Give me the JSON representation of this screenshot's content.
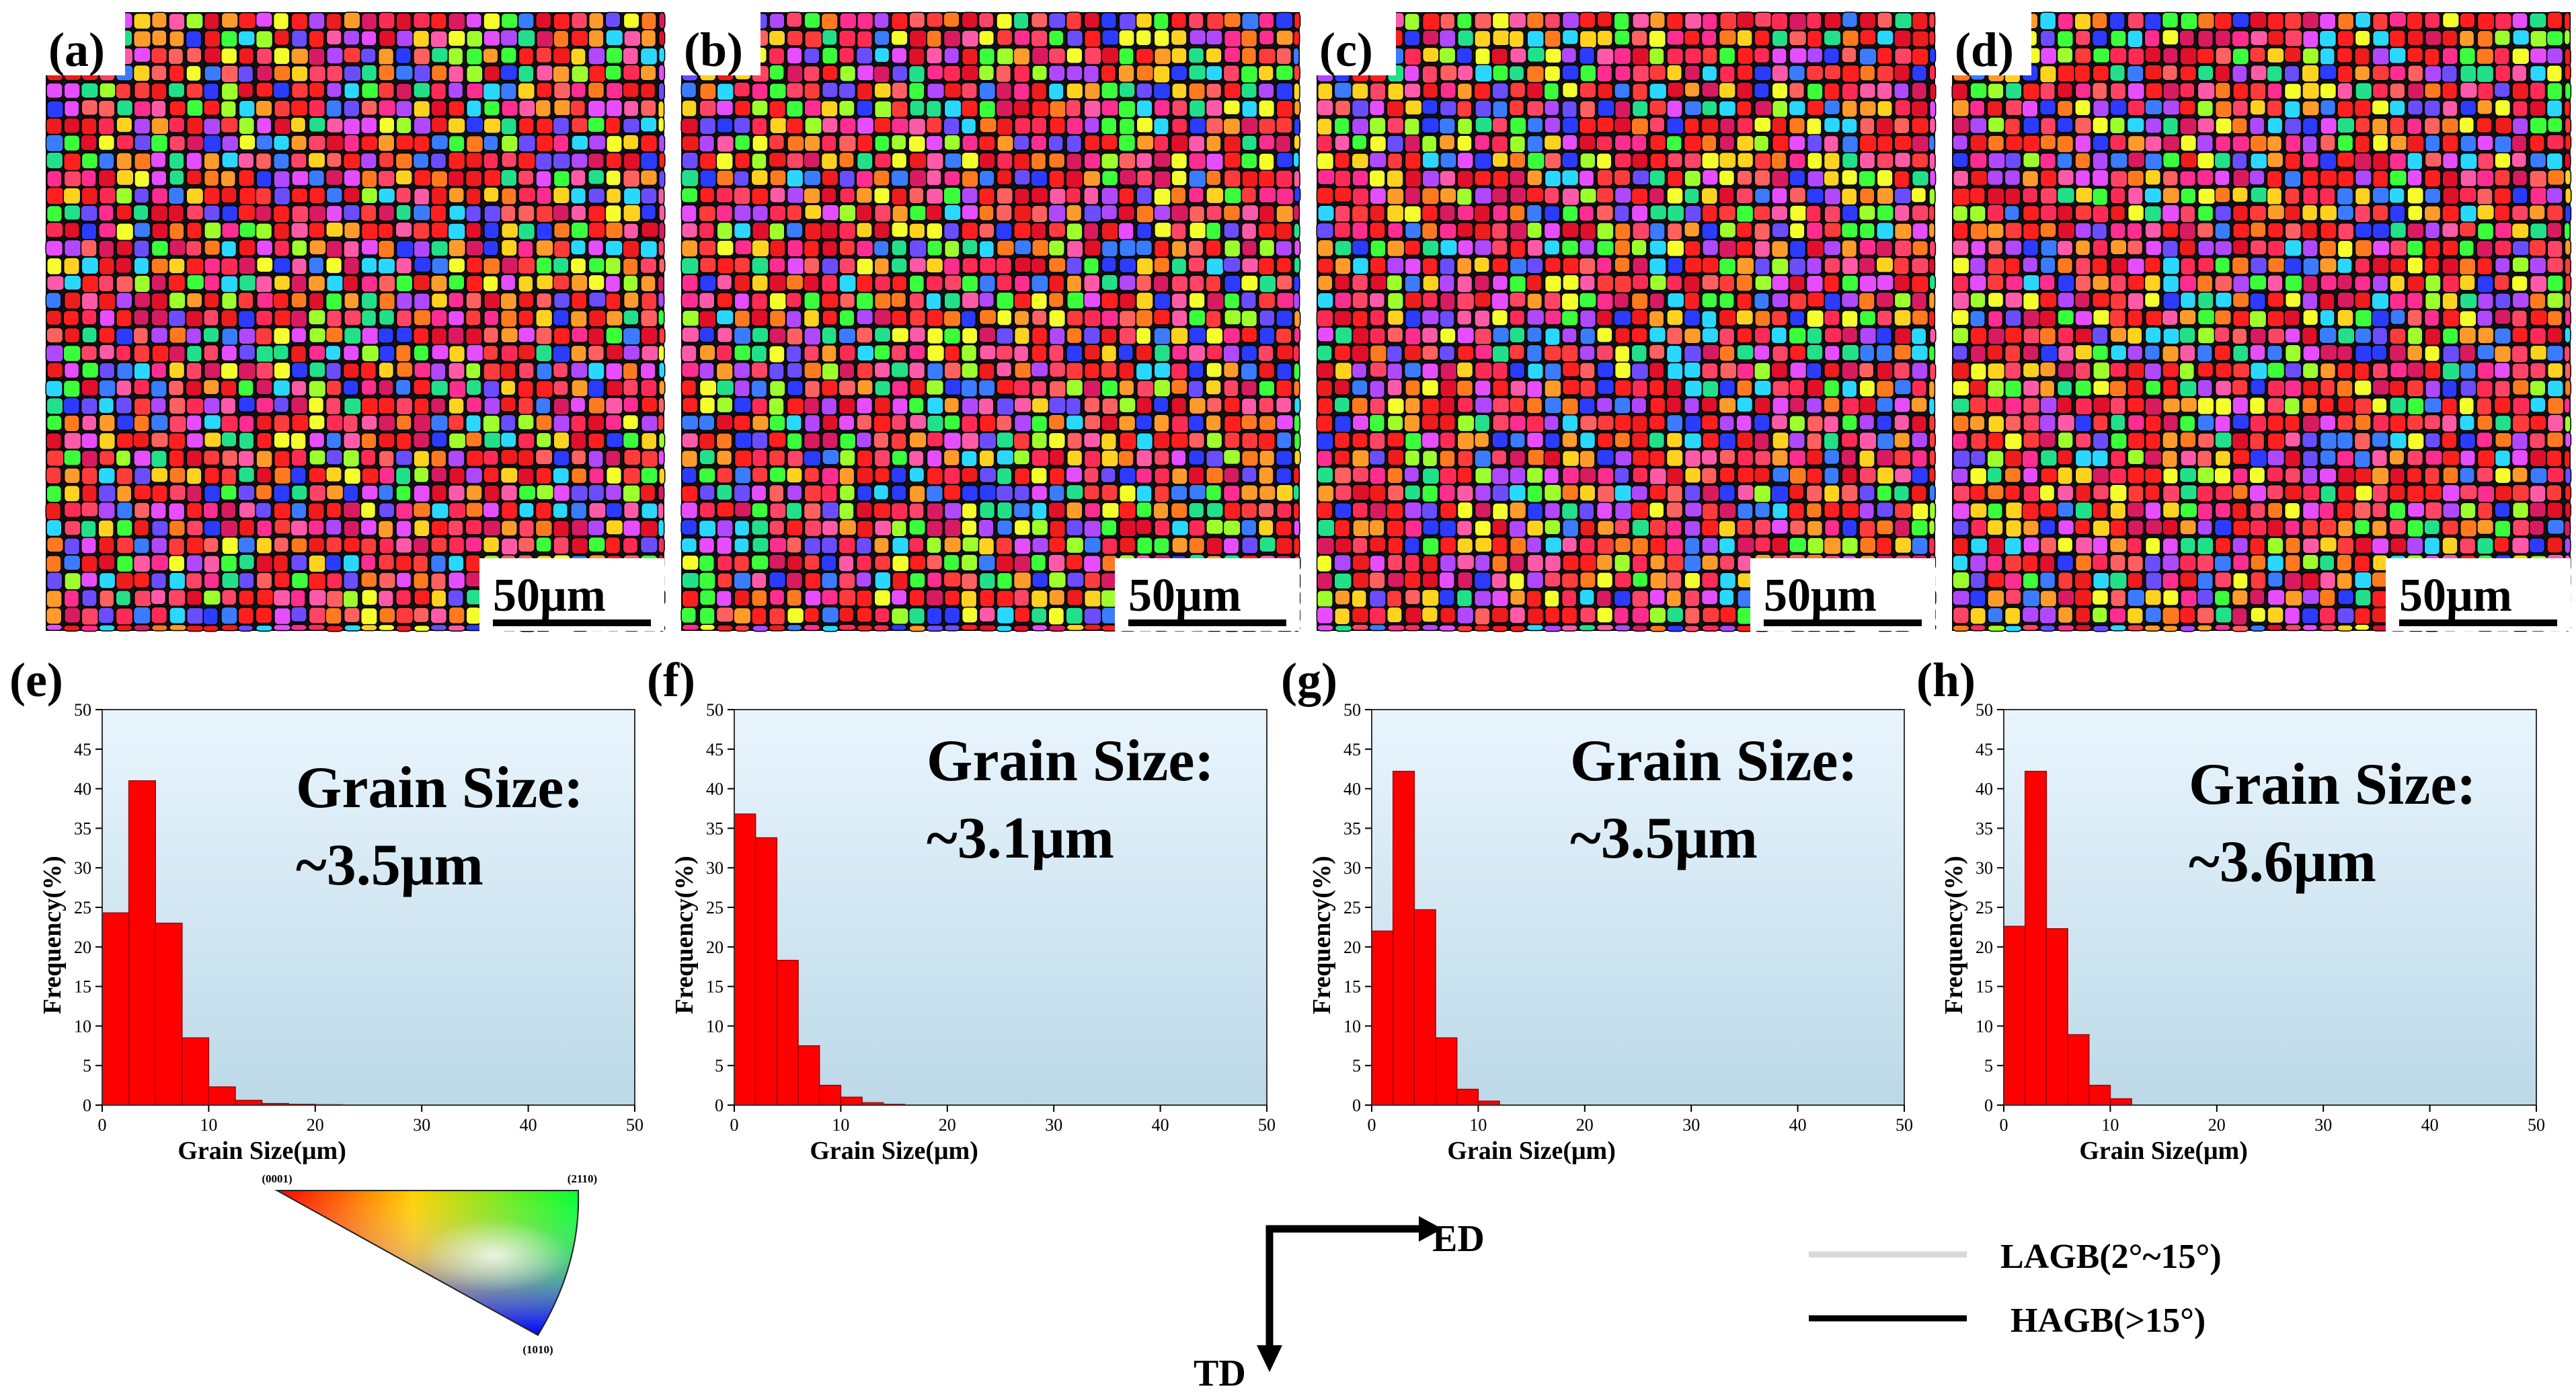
{
  "ebsd_maps": [
    {
      "label": "(a)",
      "scale_bar": "50μm"
    },
    {
      "label": "(b)",
      "scale_bar": "50μm"
    },
    {
      "label": "(c)",
      "scale_bar": "50μm"
    },
    {
      "label": "(d)",
      "scale_bar": "50μm"
    }
  ],
  "chart_data": [
    {
      "type": "bar",
      "panel": "(e)",
      "xlabel": "Grain Size(μm)",
      "ylabel": "Frequency(%)",
      "xlim": [
        0,
        50
      ],
      "ylim": [
        0,
        50
      ],
      "xticks": [
        "0",
        "10",
        "20",
        "30",
        "40",
        "50"
      ],
      "yticks": [
        "0",
        "5",
        "10",
        "15",
        "20",
        "25",
        "30",
        "35",
        "40",
        "45",
        "50"
      ],
      "bin_width": 2.5,
      "bin_starts": [
        0,
        2.5,
        5,
        7.5,
        10,
        12.5,
        15,
        17.5,
        20
      ],
      "values": [
        24.3,
        41.0,
        23.0,
        8.5,
        2.3,
        0.6,
        0.2,
        0.1,
        0.05
      ],
      "annotation_line1": "Grain Size:",
      "annotation_line2": "~3.5μm"
    },
    {
      "type": "bar",
      "panel": "(f)",
      "xlabel": "Grain Size(μm)",
      "ylabel": "Frequency(%)",
      "xlim": [
        0,
        50
      ],
      "ylim": [
        0,
        50
      ],
      "xticks": [
        "0",
        "10",
        "20",
        "30",
        "40",
        "50"
      ],
      "yticks": [
        "0",
        "5",
        "10",
        "15",
        "20",
        "25",
        "30",
        "35",
        "40",
        "45",
        "50"
      ],
      "bin_width": 2.0,
      "bin_starts": [
        0,
        2,
        4,
        6,
        8,
        10,
        12,
        14
      ],
      "values": [
        36.8,
        33.8,
        18.3,
        7.5,
        2.5,
        1.0,
        0.3,
        0.1
      ],
      "annotation_line1": "Grain Size:",
      "annotation_line2": "~3.1μm"
    },
    {
      "type": "bar",
      "panel": "(g)",
      "xlabel": "Grain Size(μm)",
      "ylabel": "Frequency(%)",
      "xlim": [
        0,
        50
      ],
      "ylim": [
        0,
        50
      ],
      "xticks": [
        "0",
        "10",
        "20",
        "30",
        "40",
        "50"
      ],
      "yticks": [
        "0",
        "5",
        "10",
        "15",
        "20",
        "25",
        "30",
        "35",
        "40",
        "45",
        "50"
      ],
      "bin_width": 2.0,
      "bin_starts": [
        0,
        2,
        4,
        6,
        8,
        10
      ],
      "values": [
        22.0,
        42.2,
        24.7,
        8.5,
        2.0,
        0.5
      ],
      "annotation_line1": "Grain Size:",
      "annotation_line2": "~3.5μm"
    },
    {
      "type": "bar",
      "panel": "(h)",
      "xlabel": "Grain Size(μm)",
      "ylabel": "Frequency(%)",
      "xlim": [
        0,
        50
      ],
      "ylim": [
        0,
        50
      ],
      "xticks": [
        "0",
        "10",
        "20",
        "30",
        "40",
        "50"
      ],
      "yticks": [
        "0",
        "5",
        "10",
        "15",
        "20",
        "25",
        "30",
        "35",
        "40",
        "45",
        "50"
      ],
      "bin_width": 2.0,
      "bin_starts": [
        0,
        2,
        4,
        6,
        8,
        10
      ],
      "values": [
        22.6,
        42.2,
        22.3,
        8.9,
        2.5,
        0.8
      ],
      "annotation_line1": "Grain Size:",
      "annotation_line2": "~3.6μm"
    }
  ],
  "ipf_legend": {
    "label_0001": "(0001)",
    "label_2110": "(2110)",
    "label_1010": "(1010)"
  },
  "axes_indicator": {
    "ed": "ED",
    "td": "TD"
  },
  "boundary_legend": {
    "lagb": "LAGB(2°~15°)",
    "hagb": "HAGB(>15°)",
    "lagb_color": "#d9d9d9",
    "hagb_color": "#000000"
  },
  "colors": {
    "bar": "#ff0000",
    "bar_edge": "#a00000"
  }
}
